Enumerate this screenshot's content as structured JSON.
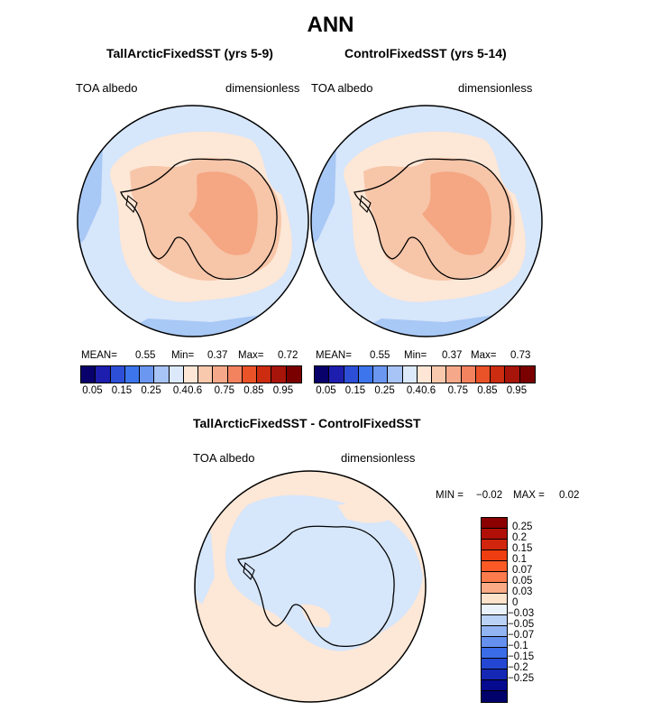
{
  "figure": {
    "title": "ANN"
  },
  "panels": [
    {
      "title": "TallArcticFixedSST (yrs 5-9)",
      "variable": "TOA albedo",
      "units": "dimensionless",
      "stats": {
        "mean_label": "MEAN=",
        "mean": "0.55",
        "min_label": "Min=",
        "min": "0.37",
        "max_label": "Max=",
        "max": "0.72"
      }
    },
    {
      "title": "ControlFixedSST (yrs 5-14)",
      "variable": "TOA albedo",
      "units": "dimensionless",
      "stats": {
        "mean_label": "MEAN=",
        "mean": "0.55",
        "min_label": "Min=",
        "min": "0.37",
        "max_label": "Max=",
        "max": "0.73"
      }
    },
    {
      "title": "TallArcticFixedSST - ControlFixedSST",
      "variable": "TOA albedo",
      "units": "dimensionless",
      "stats": {
        "min_label": "MIN =",
        "min": "−0.02",
        "max_label": "MAX =",
        "max": "0.02"
      }
    }
  ],
  "colorbars": {
    "abs": {
      "colors": [
        "#08006b",
        "#1e1eae",
        "#2d4fd8",
        "#3d75ec",
        "#6b97f0",
        "#a8c3f5",
        "#dce9fb",
        "#fde6d5",
        "#f9c9ad",
        "#f6a98a",
        "#f3825f",
        "#ea5228",
        "#cc2c10",
        "#a7140a",
        "#7a0000"
      ],
      "ticks": [
        "0.05",
        "0.15",
        "0.25",
        "0.4",
        "0.6",
        "0.75",
        "0.85",
        "0.95"
      ]
    },
    "diff": {
      "colors": [
        "#8b0000",
        "#b11008",
        "#d1260d",
        "#ee3d10",
        "#fb5a27",
        "#fb7b4c",
        "#fbab85",
        "#fde2cc",
        "#eaf2fb",
        "#bad2f5",
        "#92b4f2",
        "#6590ee",
        "#3b6ce8",
        "#2347d3",
        "#1527b5",
        "#050a8f",
        "#00006b"
      ],
      "ticks": [
        "0.25",
        "0.2",
        "0.15",
        "0.1",
        "0.07",
        "0.05",
        "0.03",
        "0",
        "−0.03",
        "−0.05",
        "−0.07",
        "−0.1",
        "−0.15",
        "−0.2",
        "−0.25"
      ]
    }
  },
  "map_colors": {
    "ocean_low": "#a8c8f5",
    "ocean": "#d6e6fb",
    "ring": "#fde7d6",
    "ice_mid": "#f7c5a8",
    "ice_high": "#f5a682",
    "diff_pos": "#fde7d6",
    "diff_neg": "#d6e6fb"
  }
}
